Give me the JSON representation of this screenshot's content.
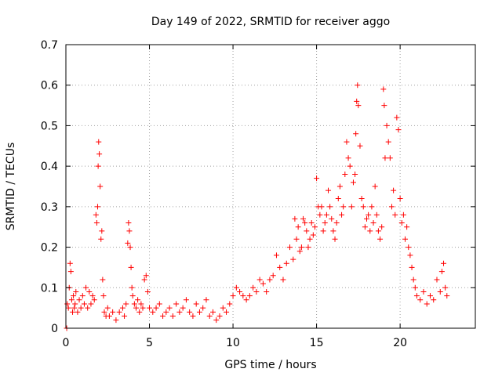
{
  "chart_data": {
    "type": "scatter",
    "title": "Day 149 of 2022, SRMTID for receiver aggo",
    "xlabel": "GPS time / hours",
    "ylabel": "SRMTID / TECUs",
    "xlim": [
      0,
      24.5
    ],
    "ylim": [
      0,
      0.7
    ],
    "grid": true,
    "marker": "+",
    "color": "#ff0000",
    "x_ticks": [
      0,
      5,
      10,
      15,
      20
    ],
    "x_tick_labels": [
      "0",
      "5",
      "10",
      "15",
      "20"
    ],
    "y_ticks": [
      0,
      0.1,
      0.2,
      0.3,
      0.4,
      0.5,
      0.6,
      0.7
    ],
    "y_tick_labels": [
      "0",
      "0.1",
      "0.2",
      "0.3",
      "0.4",
      "0.5",
      "0.6",
      "0.7"
    ],
    "series": [
      {
        "name": "aggo",
        "x": [
          0.05,
          0.08,
          0.15,
          0.2,
          0.25,
          0.3,
          0.35,
          0.4,
          0.45,
          0.5,
          0.55,
          0.6,
          0.7,
          0.8,
          0.9,
          1.0,
          1.1,
          1.2,
          1.3,
          1.4,
          1.5,
          1.6,
          1.7,
          1.8,
          1.85,
          1.9,
          1.93,
          1.96,
          2.0,
          2.05,
          2.1,
          2.15,
          2.2,
          2.25,
          2.3,
          2.4,
          2.5,
          2.6,
          2.8,
          3.0,
          3.2,
          3.4,
          3.5,
          3.6,
          3.7,
          3.75,
          3.8,
          3.85,
          3.9,
          3.95,
          4.0,
          4.1,
          4.2,
          4.3,
          4.4,
          4.5,
          4.6,
          4.7,
          4.8,
          4.9,
          5.0,
          5.2,
          5.4,
          5.6,
          5.8,
          6.0,
          6.2,
          6.4,
          6.6,
          6.8,
          7.0,
          7.2,
          7.4,
          7.6,
          7.8,
          8.0,
          8.2,
          8.4,
          8.6,
          8.8,
          9.0,
          9.2,
          9.4,
          9.6,
          9.8,
          10.0,
          10.2,
          10.4,
          10.6,
          10.8,
          11.0,
          11.2,
          11.4,
          11.6,
          11.8,
          12.0,
          12.2,
          12.4,
          12.6,
          12.8,
          13.0,
          13.2,
          13.4,
          13.6,
          13.7,
          13.8,
          13.9,
          14.0,
          14.1,
          14.2,
          14.3,
          14.4,
          14.5,
          14.6,
          14.7,
          14.8,
          14.9,
          15.0,
          15.1,
          15.2,
          15.3,
          15.4,
          15.5,
          15.6,
          15.7,
          15.8,
          15.9,
          16.0,
          16.1,
          16.2,
          16.3,
          16.4,
          16.5,
          16.6,
          16.7,
          16.8,
          16.9,
          17.0,
          17.1,
          17.2,
          17.3,
          17.35,
          17.4,
          17.45,
          17.5,
          17.6,
          17.7,
          17.8,
          17.9,
          18.0,
          18.1,
          18.2,
          18.3,
          18.4,
          18.5,
          18.6,
          18.7,
          18.8,
          18.9,
          19.0,
          19.05,
          19.1,
          19.2,
          19.3,
          19.4,
          19.5,
          19.6,
          19.7,
          19.8,
          19.9,
          20.0,
          20.1,
          20.2,
          20.3,
          20.4,
          20.5,
          20.6,
          20.7,
          20.8,
          20.9,
          21.0,
          21.2,
          21.4,
          21.6,
          21.8,
          22.0,
          22.2,
          22.4,
          22.5,
          22.6,
          22.7,
          22.8
        ],
        "y": [
          0.0,
          0.06,
          0.05,
          0.1,
          0.16,
          0.14,
          0.07,
          0.04,
          0.08,
          0.05,
          0.06,
          0.09,
          0.04,
          0.07,
          0.05,
          0.08,
          0.06,
          0.1,
          0.05,
          0.09,
          0.06,
          0.08,
          0.07,
          0.28,
          0.26,
          0.3,
          0.4,
          0.46,
          0.43,
          0.35,
          0.22,
          0.24,
          0.12,
          0.08,
          0.04,
          0.03,
          0.05,
          0.03,
          0.04,
          0.02,
          0.04,
          0.05,
          0.03,
          0.06,
          0.21,
          0.26,
          0.24,
          0.2,
          0.15,
          0.1,
          0.08,
          0.06,
          0.05,
          0.07,
          0.04,
          0.06,
          0.05,
          0.12,
          0.13,
          0.09,
          0.05,
          0.04,
          0.05,
          0.06,
          0.03,
          0.04,
          0.05,
          0.03,
          0.06,
          0.04,
          0.05,
          0.07,
          0.04,
          0.03,
          0.06,
          0.04,
          0.05,
          0.07,
          0.03,
          0.04,
          0.02,
          0.03,
          0.05,
          0.04,
          0.06,
          0.08,
          0.1,
          0.09,
          0.08,
          0.07,
          0.08,
          0.1,
          0.09,
          0.12,
          0.11,
          0.09,
          0.12,
          0.13,
          0.18,
          0.15,
          0.12,
          0.16,
          0.2,
          0.17,
          0.27,
          0.22,
          0.25,
          0.19,
          0.2,
          0.27,
          0.26,
          0.24,
          0.2,
          0.22,
          0.26,
          0.23,
          0.25,
          0.37,
          0.3,
          0.28,
          0.3,
          0.24,
          0.26,
          0.28,
          0.34,
          0.3,
          0.27,
          0.24,
          0.22,
          0.26,
          0.32,
          0.35,
          0.28,
          0.3,
          0.38,
          0.46,
          0.42,
          0.4,
          0.3,
          0.36,
          0.38,
          0.48,
          0.56,
          0.6,
          0.55,
          0.45,
          0.32,
          0.3,
          0.25,
          0.27,
          0.28,
          0.24,
          0.3,
          0.26,
          0.35,
          0.28,
          0.24,
          0.22,
          0.25,
          0.59,
          0.55,
          0.42,
          0.5,
          0.46,
          0.42,
          0.3,
          0.34,
          0.28,
          0.52,
          0.49,
          0.32,
          0.26,
          0.28,
          0.22,
          0.25,
          0.2,
          0.18,
          0.15,
          0.12,
          0.1,
          0.08,
          0.07,
          0.09,
          0.06,
          0.08,
          0.07,
          0.12,
          0.09,
          0.14,
          0.16,
          0.1,
          0.08
        ]
      }
    ]
  }
}
